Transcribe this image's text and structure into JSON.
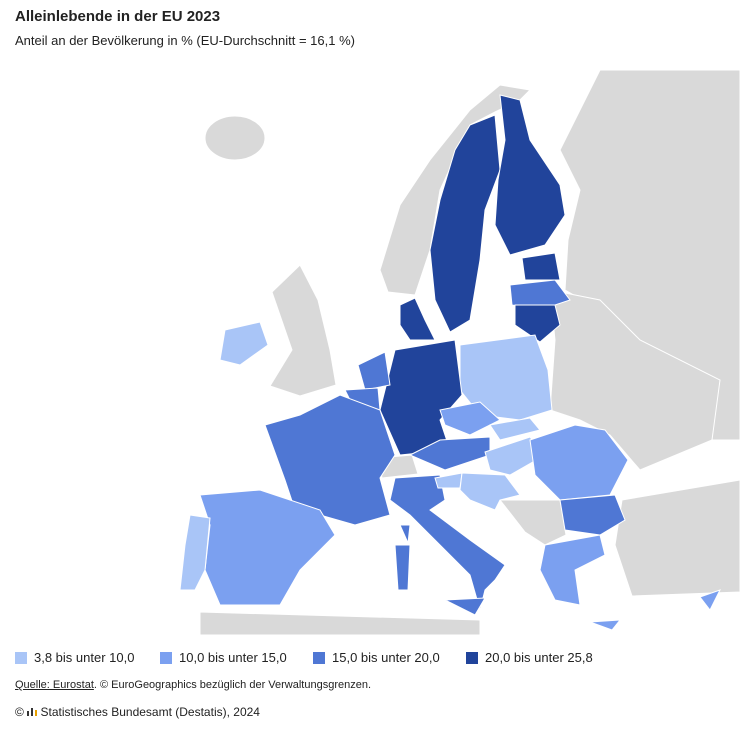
{
  "header": {
    "title": "Alleinlebende in der EU 2023",
    "subtitle": "Anteil an der Bevölkerung in % (EU-Durchschnitt = 16,1 %)"
  },
  "legend": [
    {
      "label": "3,8 bis unter 10,0",
      "color": "#a9c5f7"
    },
    {
      "label": "10,0 bis unter 15,0",
      "color": "#7ba0f0"
    },
    {
      "label": "15,0 bis unter 20,0",
      "color": "#4f77d4"
    },
    {
      "label": "20,0 bis unter 25,8",
      "color": "#21449b"
    }
  ],
  "source": {
    "link": "Quelle: Eurostat",
    "text": ". © EuroGeographics bezüglich der Verwaltungsgrenzen."
  },
  "copyright": "Statistisches Bundesamt (Destatis), 2024"
}
